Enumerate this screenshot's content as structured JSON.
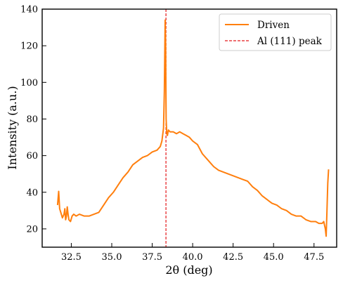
{
  "chart_data": {
    "type": "line",
    "xlabel": "2θ (deg)",
    "ylabel": "Intensity (a.u.)",
    "xlim": [
      30.7,
      48.9
    ],
    "ylim": [
      10,
      140
    ],
    "x_ticks": [
      32.5,
      35.0,
      37.5,
      40.0,
      42.5,
      45.0,
      47.5
    ],
    "x_tick_labels": [
      "32.5",
      "35.0",
      "37.5",
      "40.0",
      "42.5",
      "45.0",
      "47.5"
    ],
    "y_ticks": [
      20,
      40,
      60,
      80,
      100,
      120,
      140
    ],
    "y_tick_labels": [
      "20",
      "40",
      "60",
      "80",
      "100",
      "120",
      "140"
    ],
    "legend_position": "top-right",
    "grid": false,
    "series": [
      {
        "name": "Driven",
        "color": "#ff7f0e",
        "x": [
          31.65,
          31.72,
          31.78,
          31.85,
          31.95,
          32.05,
          32.1,
          32.15,
          32.2,
          32.25,
          32.3,
          32.35,
          32.45,
          32.55,
          32.65,
          32.8,
          33.0,
          33.3,
          33.6,
          33.9,
          34.2,
          34.5,
          34.8,
          35.1,
          35.4,
          35.7,
          36.0,
          36.3,
          36.6,
          36.9,
          37.2,
          37.5,
          37.8,
          38.0,
          38.1,
          38.2,
          38.25,
          38.3,
          38.33,
          38.36,
          38.4,
          38.44,
          38.5,
          38.6,
          38.8,
          39.0,
          39.2,
          39.4,
          39.6,
          39.8,
          40.0,
          40.3,
          40.6,
          40.9,
          41.1,
          41.3,
          41.6,
          41.9,
          42.2,
          42.5,
          42.8,
          43.1,
          43.4,
          43.7,
          44.0,
          44.3,
          44.6,
          44.9,
          45.2,
          45.5,
          45.8,
          46.1,
          46.4,
          46.7,
          47.0,
          47.3,
          47.6,
          47.8,
          48.0,
          48.1,
          48.2,
          48.25,
          48.3,
          48.35,
          48.4
        ],
        "y": [
          33,
          40.5,
          31,
          29,
          26,
          28,
          31,
          25,
          27,
          32,
          28,
          25,
          24,
          27,
          28,
          27,
          28,
          27,
          27,
          28,
          29,
          33,
          37,
          40,
          44,
          48,
          51,
          55,
          57,
          59,
          60,
          62,
          63,
          65,
          68,
          75,
          95,
          134,
          120,
          80,
          72,
          71,
          74,
          73,
          73,
          72,
          73,
          72,
          71,
          70,
          68,
          66,
          61,
          58,
          56,
          54,
          52,
          51,
          50,
          49,
          48,
          47,
          46,
          43,
          41,
          38,
          36,
          34,
          33,
          31,
          30,
          28,
          27,
          27,
          25,
          24,
          24,
          23,
          23,
          24,
          20,
          16,
          30,
          45,
          52.5
        ]
      }
    ],
    "reference_lines": [
      {
        "name": "Al (111) peak",
        "x": 38.35,
        "color": "#e41a1c",
        "style": "dashed"
      }
    ]
  }
}
